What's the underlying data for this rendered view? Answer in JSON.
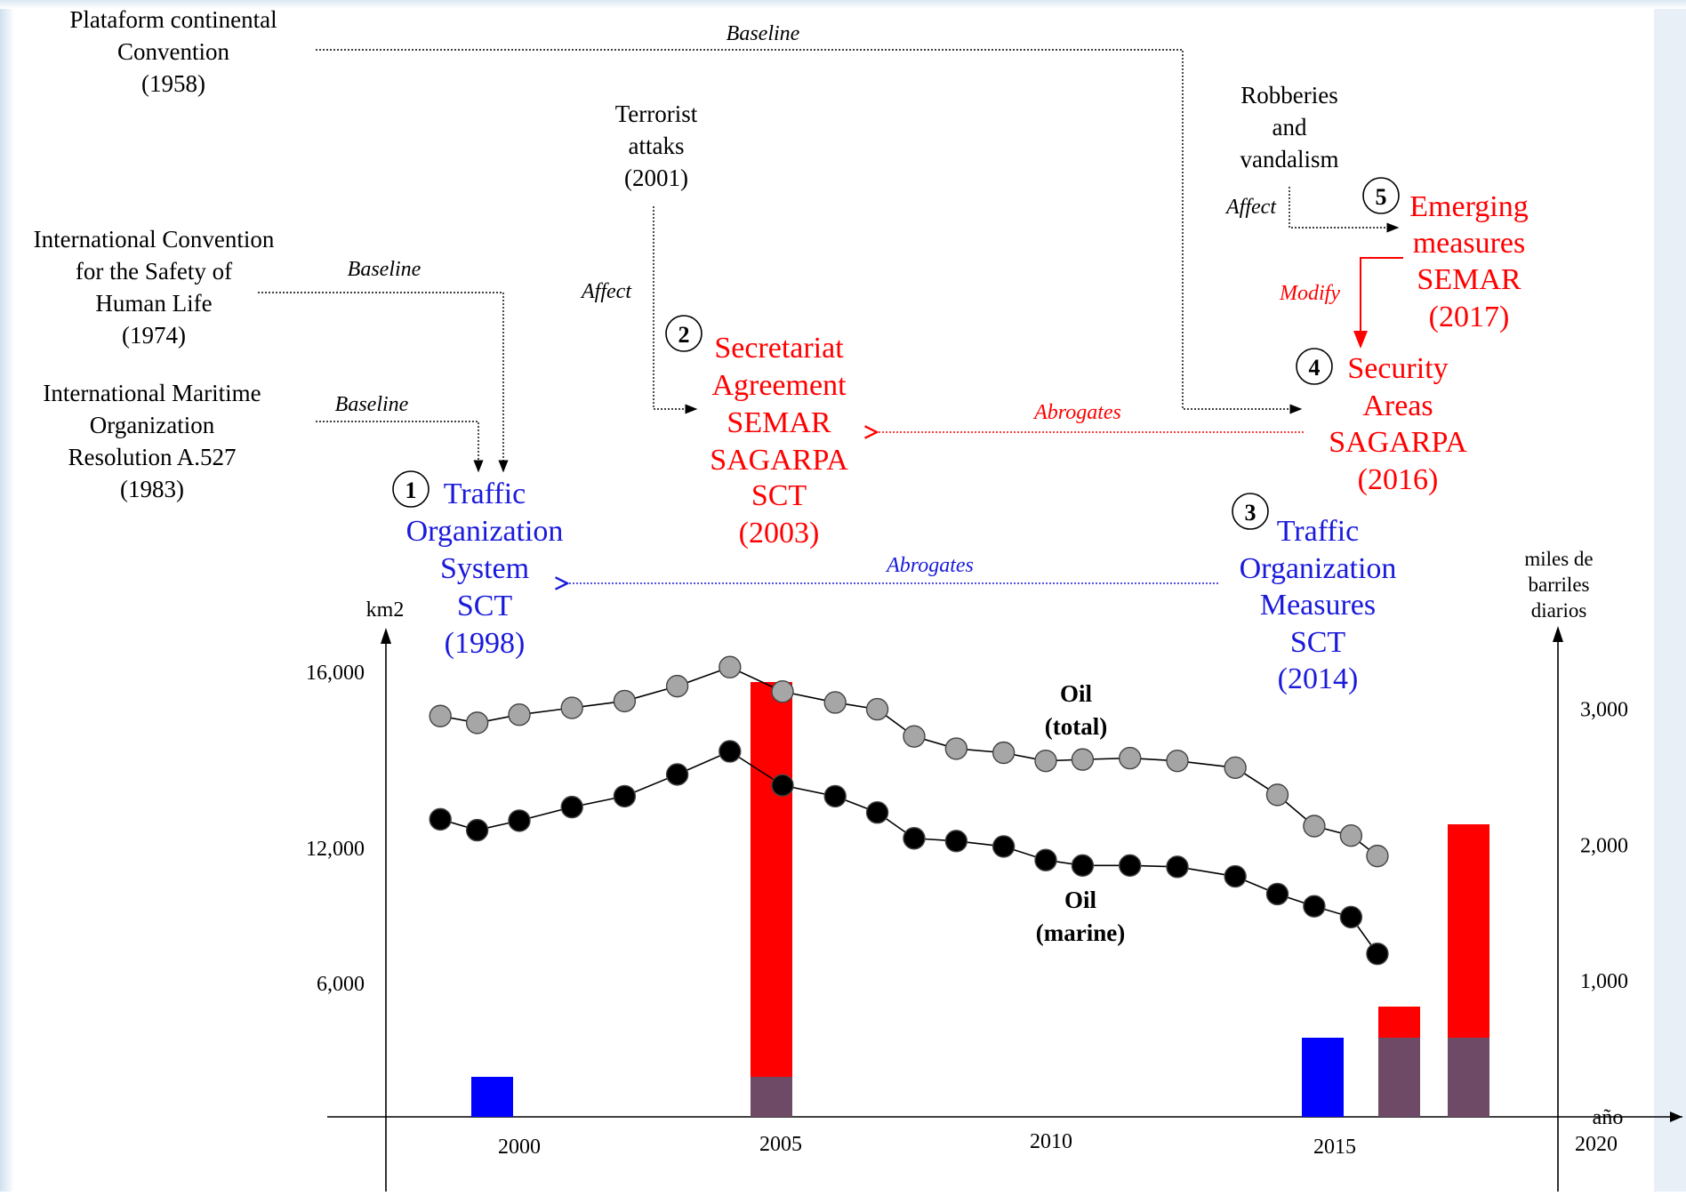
{
  "colors": {
    "red": "#ff0000",
    "blue": "#1a1adb",
    "bar_blue": "#0000ff",
    "bar_purple": "#6e4a66",
    "dot_gray": "#a6a6a6",
    "dot_black": "#000000"
  },
  "sources": {
    "s1": [
      "Plataform continental",
      "Convention",
      "(1958)"
    ],
    "s2": [
      "International Convention",
      "for the Safety of",
      "Human Life",
      "(1974)"
    ],
    "s3": [
      "International Maritime",
      "Organization",
      "Resolution A.527",
      "(1983)"
    ],
    "s4": [
      "Terrorist",
      "attaks",
      "(2001)"
    ],
    "s5": [
      "Robberies",
      "and",
      "vandalism"
    ]
  },
  "edges": {
    "baseline_1": "Baseline",
    "baseline_2": "Baseline",
    "baseline_3": "Baseline",
    "affect_1": "Affect",
    "affect_2": "Affect",
    "modify": "Modify",
    "abrogates_red": "Abrogates",
    "abrogates_blue": "Abrogates"
  },
  "measures": {
    "m1": {
      "num": "1",
      "lines": [
        "Traffic",
        "Organization",
        "System",
        "SCT",
        "(1998)"
      ]
    },
    "m2": {
      "num": "2",
      "lines": [
        "Secretariat",
        "Agreement",
        "SEMAR",
        "SAGARPA",
        "SCT",
        "(2003)"
      ]
    },
    "m3": {
      "num": "3",
      "lines": [
        "Traffic",
        "Organization",
        "Measures",
        "SCT",
        "(2014)"
      ]
    },
    "m4": {
      "num": "4",
      "lines": [
        "Security",
        "Areas",
        "SAGARPA",
        "(2016)"
      ]
    },
    "m5": {
      "num": "5",
      "lines": [
        "Emerging",
        "measures",
        "SEMAR",
        "(2017)"
      ]
    }
  },
  "chart_data": {
    "type": "bar+line",
    "left_axis": {
      "label": "km2",
      "ticks": [
        "6,000",
        "12,000",
        "16,000"
      ],
      "tick_values": [
        6000,
        12000,
        16000
      ]
    },
    "right_axis": {
      "label_lines": [
        "miles de",
        "barriles",
        "diarios"
      ],
      "ticks": [
        "1,000",
        "2,000",
        "3,000"
      ],
      "tick_values": [
        1000,
        2000,
        3000
      ]
    },
    "x_axis": {
      "label": "año",
      "ticks": [
        "2000",
        "2005",
        "2010",
        "2015",
        "2020"
      ],
      "tick_values": [
        2000,
        2005,
        2010,
        2015,
        2020
      ]
    },
    "series": [
      {
        "name_lines": [
          "Oil",
          "(total)"
        ],
        "color": "#a6a6a6",
        "x": [
          1998.5,
          1999.2,
          2000,
          2001,
          2002,
          2003,
          2004,
          2005,
          2006,
          2006.8,
          2007.5,
          2008.3,
          2009.2,
          2010,
          2010.7,
          2011.6,
          2012.5,
          2013.6,
          2014.4,
          2015.1,
          2015.8,
          2016.3
        ],
        "values": [
          2950,
          2900,
          2960,
          3010,
          3060,
          3170,
          3310,
          3130,
          3050,
          3000,
          2800,
          2710,
          2680,
          2620,
          2630,
          2640,
          2620,
          2570,
          2370,
          2140,
          2070,
          1920
        ]
      },
      {
        "name_lines": [
          "Oil",
          "(marine)"
        ],
        "color": "#000000",
        "x": [
          1998.5,
          1999.2,
          2000,
          2001,
          2002,
          2003,
          2004,
          2005,
          2006,
          2006.8,
          2007.5,
          2008.3,
          2009.2,
          2010,
          2010.7,
          2011.6,
          2012.5,
          2013.6,
          2014.4,
          2015.1,
          2015.8,
          2016.3
        ],
        "values": [
          2190,
          2110,
          2180,
          2280,
          2360,
          2520,
          2690,
          2440,
          2360,
          2240,
          2050,
          2030,
          1990,
          1890,
          1850,
          1850,
          1840,
          1770,
          1640,
          1550,
          1470,
          1200
        ]
      }
    ],
    "bars": [
      {
        "x": 2000,
        "bottom_color": "#0000ff",
        "bottom_km2": 2800
      },
      {
        "x": 2005,
        "bottom_color": "#6e4a66",
        "bottom_km2": 2800,
        "top_color": "#ff0000",
        "top_km2": 16000
      },
      {
        "x": 2015,
        "bottom_color": "#0000ff",
        "bottom_km2": 5800
      },
      {
        "x": 2016.2,
        "bottom_color": "#6e4a66",
        "bottom_km2": 5800,
        "top_color": "#ff0000",
        "top_km2": 7000
      },
      {
        "x": 2017.5,
        "bottom_color": "#6e4a66",
        "bottom_km2": 5800,
        "top_color": "#ff0000",
        "top_km2": 13500
      }
    ]
  }
}
